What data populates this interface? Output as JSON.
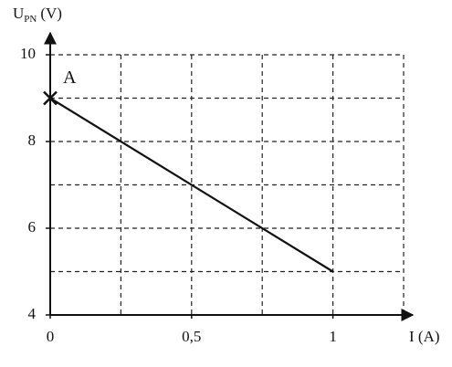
{
  "chart_data": {
    "type": "line",
    "y_label": "U",
    "y_label_sub": "PN",
    "y_label_unit": "(V)",
    "x_label": "I (A)",
    "x": [
      0,
      1
    ],
    "values": [
      9,
      5
    ],
    "color": "#111111",
    "xlim": [
      0,
      1.25
    ],
    "ylim": [
      4,
      10
    ],
    "xticks": [
      0,
      {
        "value": 0.5,
        "label": "0,5"
      },
      1
    ],
    "minor_xticks": [
      0.25,
      0.75,
      1.25
    ],
    "yticks": [
      4,
      6,
      8,
      10
    ],
    "minor_yticks": [
      5,
      7,
      9
    ],
    "grid": true,
    "annotation": {
      "text": "A",
      "x": 0,
      "y": 9
    }
  }
}
